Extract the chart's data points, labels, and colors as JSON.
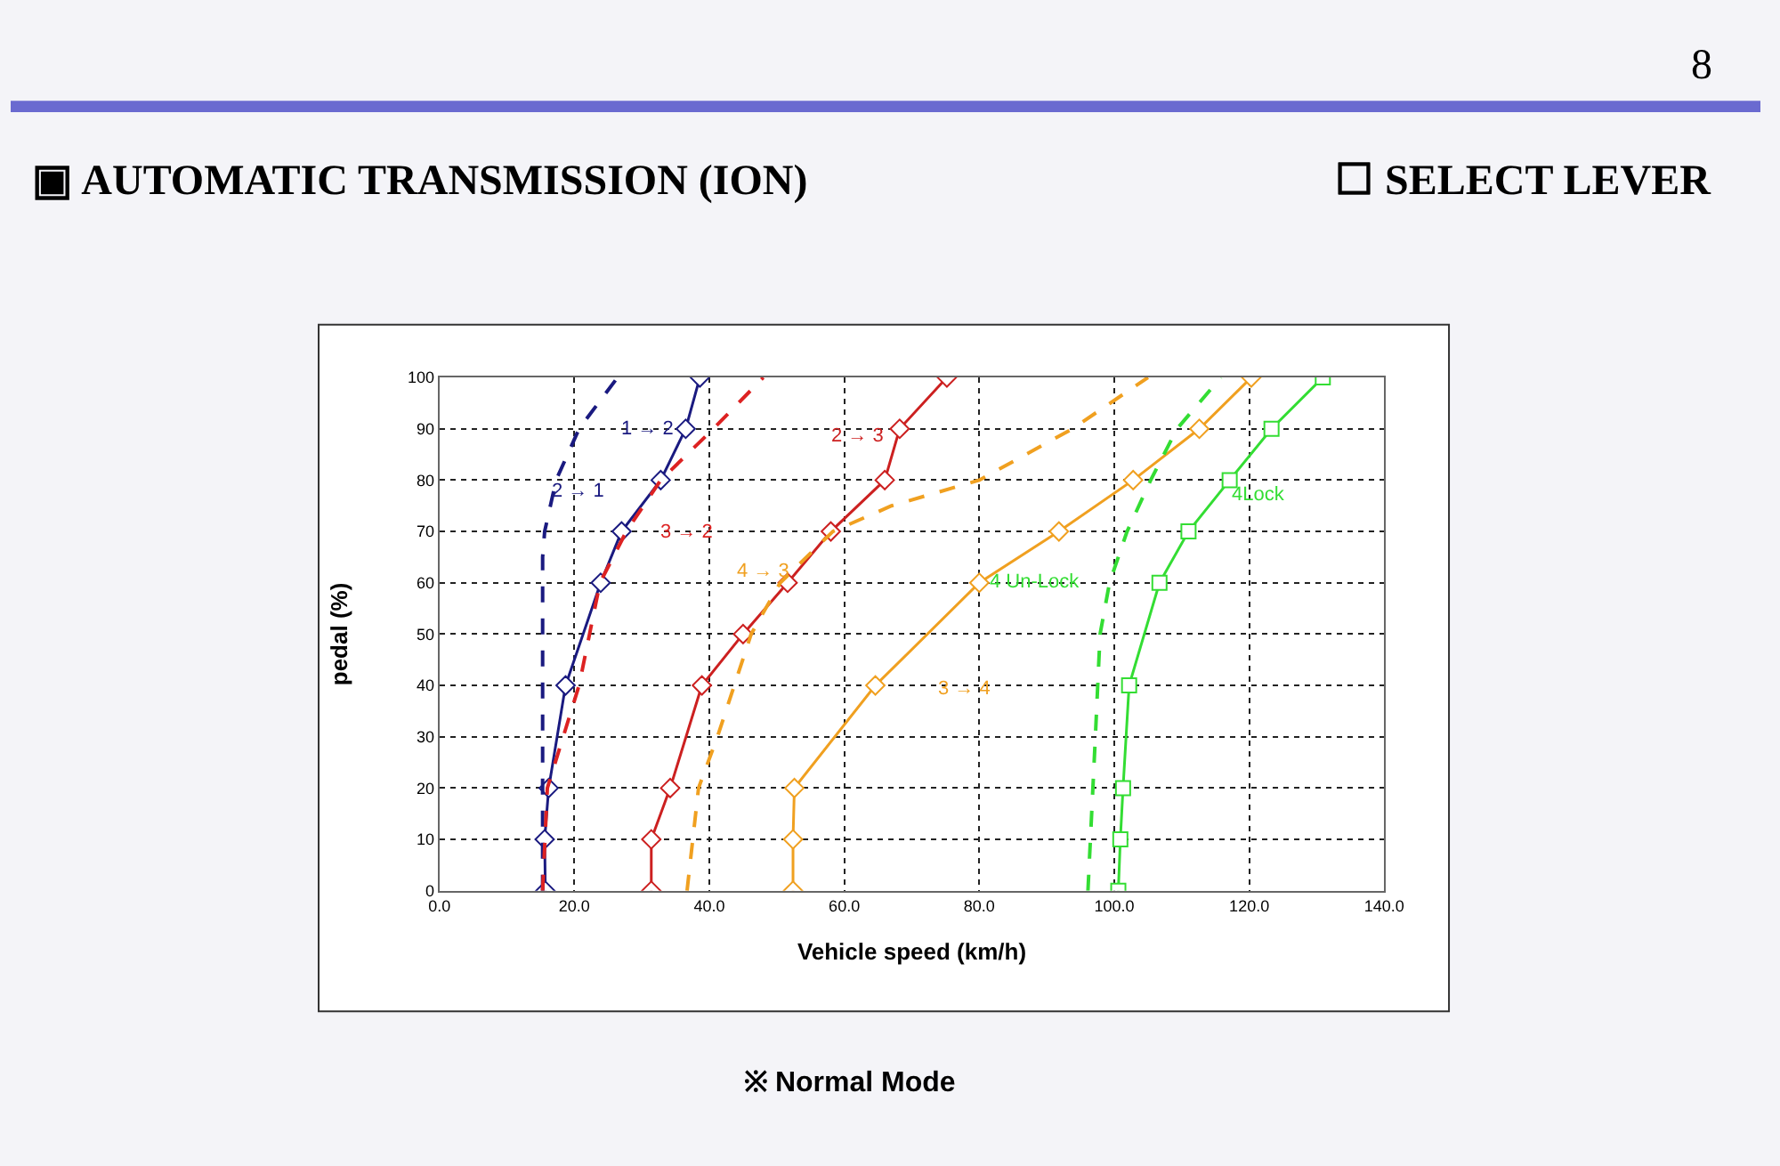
{
  "chart_data": {
    "type": "line",
    "title": "▣ AUTOMATIC TRANSMISSION (ION)",
    "subtitle": "☐ SELECT LEVER",
    "xlabel": "Vehicle speed (km/h)",
    "ylabel": "pedal (%)",
    "annotations": [
      "8",
      "※ Normal Mode"
    ],
    "xlim": [
      0,
      140
    ],
    "xticks": [
      {
        "value": 0,
        "label": "0.0"
      },
      {
        "value": 20,
        "label": "20.0"
      },
      {
        "value": 40,
        "label": "40.0"
      },
      {
        "value": 60,
        "label": "60.0"
      },
      {
        "value": 80,
        "label": "80.0"
      },
      {
        "value": 100,
        "label": "100.0"
      },
      {
        "value": 120,
        "label": "120.0"
      },
      {
        "value": 140,
        "label": "140.0"
      }
    ],
    "ylim": [
      0,
      100
    ],
    "yticks": [
      0,
      10,
      20,
      30,
      40,
      50,
      60,
      70,
      80,
      90,
      100
    ],
    "grid": true,
    "legend": false,
    "series": [
      {
        "name": "1 → 2",
        "color": "#1a1a80",
        "marker": "diamond",
        "line_style": "solid",
        "x": [
          15.7,
          15.6,
          16.2,
          18.7,
          23.9,
          27,
          32.8,
          36.5,
          38.6
        ],
        "values": [
          0,
          10,
          20,
          40,
          60,
          70,
          80,
          90,
          100
        ]
      },
      {
        "name": "2 → 1",
        "color": "#1a1a80",
        "marker": "none",
        "line_style": "dashed",
        "x": [
          15.3,
          15.3,
          15.3,
          15.6,
          17.3,
          20.7,
          26.4
        ],
        "values": [
          0,
          40,
          65,
          70,
          80,
          90,
          100
        ]
      },
      {
        "name": "3 → 2",
        "color": "#dd2222",
        "marker": "none",
        "line_style": "dashed",
        "x": [
          15.3,
          16,
          20.7,
          23.8,
          27.7,
          32.8,
          40.6,
          48
        ],
        "values": [
          0,
          20,
          40,
          60,
          70,
          80,
          90,
          100
        ]
      },
      {
        "name": "2 → 3",
        "color": "#cc2020",
        "marker": "diamond",
        "line_style": "solid",
        "x": [
          31.4,
          31.4,
          34.2,
          38.9,
          45,
          51.6,
          58,
          66,
          68.2,
          75.2
        ],
        "values": [
          0,
          10,
          20,
          40,
          50,
          60,
          70,
          80,
          90,
          100
        ]
      },
      {
        "name": "4 → 3",
        "color": "#f0a020",
        "marker": "none",
        "line_style": "dashed",
        "x": [
          36.7,
          38.4,
          41.2,
          46.2,
          50.5,
          58.3,
          67,
          80,
          93.8,
          105
        ],
        "values": [
          0,
          20,
          30,
          50,
          60,
          70,
          75,
          80,
          90,
          100
        ]
      },
      {
        "name": "3 → 4",
        "color": "#f0a020",
        "marker": "diamond",
        "line_style": "solid",
        "x": [
          52.4,
          52.4,
          52.6,
          64.6,
          80,
          91.8,
          102.8,
          112.6,
          120.3
        ],
        "values": [
          0,
          10,
          20,
          40,
          60,
          70,
          80,
          90,
          100
        ]
      },
      {
        "name": "4 Un-Lock",
        "color": "#33dd33",
        "marker": "none",
        "line_style": "dashed",
        "x": [
          96.1,
          97.2,
          97.9,
          99.3,
          101.9,
          105.4,
          109.3,
          115.8
        ],
        "values": [
          0,
          30,
          50,
          60,
          70,
          80,
          90,
          100
        ]
      },
      {
        "name": "4Lock",
        "color": "#33dd33",
        "marker": "square",
        "line_style": "solid",
        "x": [
          100.6,
          100.9,
          101.3,
          102.2,
          106.7,
          111,
          117.1,
          123.3,
          130.9
        ],
        "values": [
          0,
          10,
          20,
          40,
          60,
          70,
          80,
          90,
          100
        ]
      }
    ]
  }
}
